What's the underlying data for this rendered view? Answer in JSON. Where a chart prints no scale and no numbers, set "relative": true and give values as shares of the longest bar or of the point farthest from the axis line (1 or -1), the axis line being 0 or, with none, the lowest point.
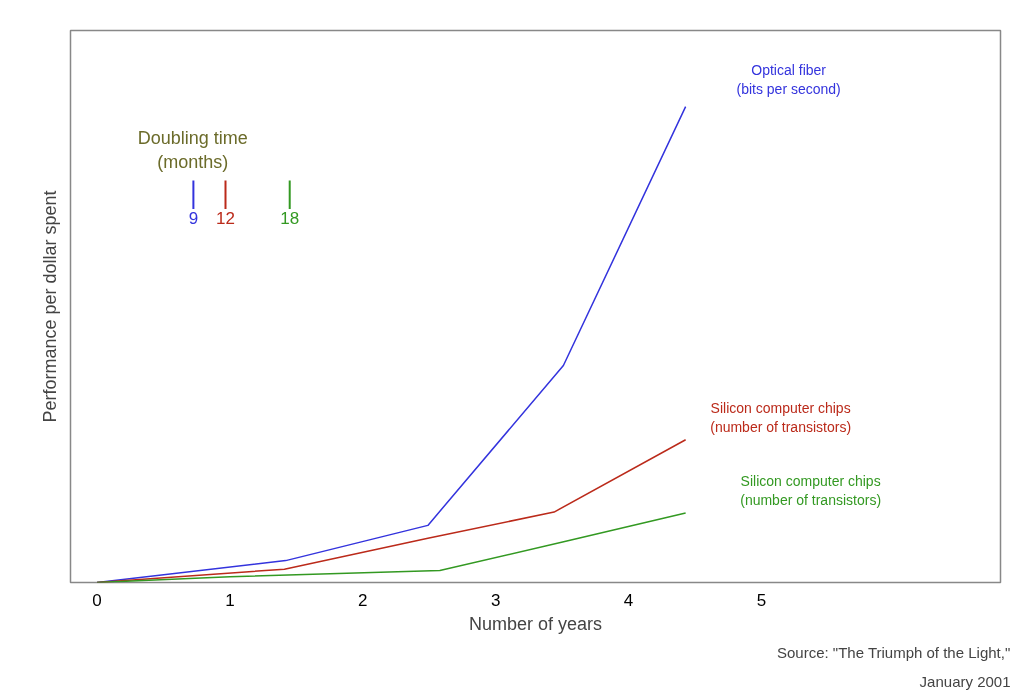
{
  "chart_data": {
    "type": "line",
    "relative": true,
    "xlabel": "Number of years",
    "ylabel": "Performance per dollar spent",
    "xlim": [
      -0.2,
      6.8
    ],
    "xticks": [
      0,
      1,
      2,
      3,
      4,
      5
    ],
    "grid": false,
    "series": [
      {
        "name": "Optical fiber\n(bits per second)",
        "color": "#3333dd",
        "x": [
          0,
          1.42,
          2.49,
          3.51,
          4.43
        ],
        "values": [
          0,
          0.046,
          0.12,
          0.456,
          1
        ]
      },
      {
        "name": "Silicon computer chips\n(number of transistors)",
        "color": "#bb2a1a",
        "x": [
          0,
          1.41,
          2.49,
          3.44,
          4.43
        ],
        "values": [
          0,
          0.028,
          0.093,
          0.148,
          0.3
        ]
      },
      {
        "name": "Silicon computer chips\n(number of transistors)",
        "color": "#339922",
        "x": [
          0,
          1.0,
          2.58,
          3.52,
          4.43
        ],
        "values": [
          0,
          0.012,
          0.025,
          0.086,
          0.146
        ]
      }
    ],
    "annotations": [
      "Doubling time\n(months)",
      "9",
      "12",
      "18",
      "Source: \"The Triumph of the Light,\"\nJanuary 2001"
    ]
  }
}
